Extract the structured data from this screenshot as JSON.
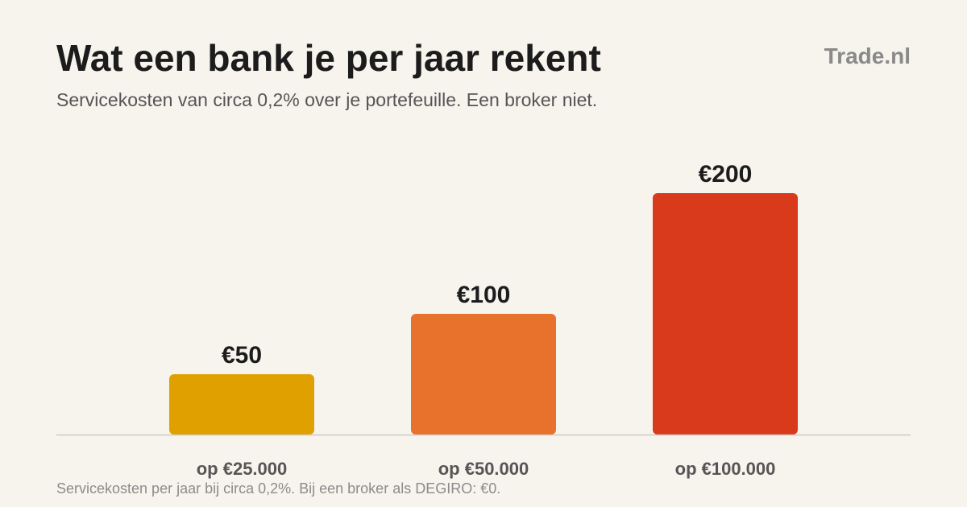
{
  "header": {
    "title": "Wat een bank je per jaar rekent",
    "subtitle": "Servicekosten van circa 0,2% over je portefeuille. Een broker niet.",
    "brand": "Trade.nl"
  },
  "footnote": "Servicekosten per jaar bij circa 0,2%. Bij een broker als DEGIRO: €0.",
  "chart_data": {
    "type": "bar",
    "categories": [
      "op €25.000",
      "op €50.000",
      "op €100.000"
    ],
    "values": [
      50,
      100,
      200
    ],
    "data_labels": [
      "€50",
      "€100",
      "€200"
    ],
    "colors": [
      "#e0a000",
      "#e8712b",
      "#d93a1b"
    ],
    "ylim": [
      0,
      200
    ],
    "grid": false,
    "legend": "none"
  }
}
